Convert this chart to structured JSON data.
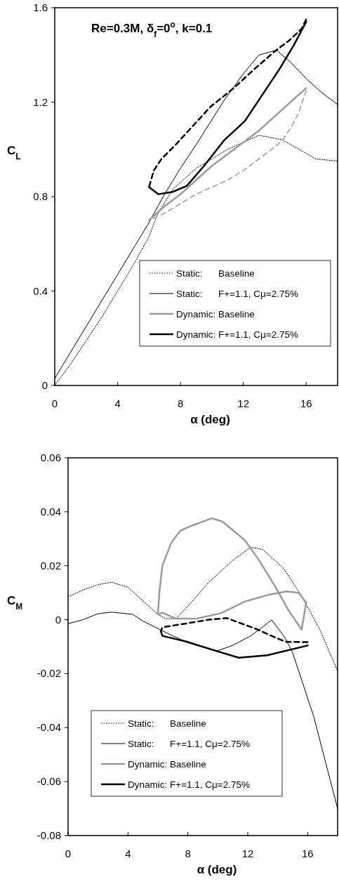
{
  "chart_data": [
    {
      "type": "line",
      "title": "Re=0.3M, δ$_{f}$=0$^{o}$, k=0.1",
      "xlabel": "α (deg)",
      "ylabel": "C$_{L}$",
      "xlim": [
        0,
        18
      ],
      "xticks": [
        0,
        4,
        8,
        12,
        16
      ],
      "ylim": [
        0,
        1.6
      ],
      "yticks": [
        0,
        0.4,
        0.8,
        1.2,
        1.6
      ],
      "legend": "bottom right",
      "series": [
        {
          "name": "Static:      Baseline",
          "color": "#000000",
          "line_style": "dotted",
          "x": [
            0,
            1,
            2,
            3,
            4,
            5,
            6,
            6.5,
            7.5,
            9,
            11,
            13,
            14.5,
            16.6,
            18
          ],
          "values": [
            0,
            0.09,
            0.19,
            0.29,
            0.4,
            0.51,
            0.63,
            0.72,
            0.83,
            0.92,
            1.0,
            1.06,
            1.04,
            0.96,
            0.95
          ]
        },
        {
          "name": "Static:      F+=1.1, Cμ=2.75%",
          "color": "#000000",
          "line_style": "solid",
          "x": [
            0,
            1,
            2,
            3,
            4,
            5,
            6,
            6.9,
            8,
            9,
            10.8,
            12,
            13,
            14.1,
            15,
            16,
            17,
            18
          ],
          "values": [
            0.03,
            0.14,
            0.25,
            0.36,
            0.47,
            0.58,
            0.69,
            0.8,
            0.92,
            1.02,
            1.21,
            1.32,
            1.4,
            1.42,
            1.37,
            1.3,
            1.24,
            1.19
          ]
        },
        {
          "name": "Dynamic: Baseline",
          "color": "#9a9a9a",
          "line_style": "solid",
          "x": [
            6,
            7,
            8,
            9,
            10,
            11,
            12,
            13,
            14,
            15,
            16
          ],
          "values": [
            0.7,
            0.76,
            0.81,
            0.87,
            0.93,
            0.98,
            1.03,
            1.08,
            1.14,
            1.2,
            1.26
          ]
        },
        {
          "color": "#9a9a9a",
          "line_style": "dashed",
          "x": [
            16,
            15.5,
            15,
            14.5,
            14,
            13,
            12,
            11,
            10,
            9,
            8,
            7,
            6
          ],
          "values": [
            1.25,
            1.15,
            1.09,
            1.04,
            1.01,
            0.96,
            0.91,
            0.87,
            0.84,
            0.81,
            0.77,
            0.73,
            0.7
          ]
        },
        {
          "name": "Dynamic: F+=1.1, Cμ=2.75%",
          "color": "#000000",
          "line_style": "solid",
          "x": [
            6.0,
            6.6,
            7.5,
            8.4,
            9.5,
            10.8,
            12.1,
            13.2,
            14.3,
            15.2,
            16.0
          ],
          "values": [
            0.84,
            0.81,
            0.82,
            0.845,
            0.93,
            1.04,
            1.12,
            1.23,
            1.34,
            1.44,
            1.54
          ]
        },
        {
          "color": "#000000",
          "line_style": "dashed",
          "x": [
            16.0,
            15.7,
            14.9,
            14.0,
            12.7,
            11.4,
            9.9,
            8.8,
            7.7,
            6.8,
            6.3,
            6.0
          ],
          "values": [
            1.55,
            1.51,
            1.46,
            1.415,
            1.34,
            1.26,
            1.18,
            1.1,
            1.02,
            0.96,
            0.91,
            0.84
          ]
        }
      ]
    },
    {
      "type": "line",
      "xlabel": "α (deg)",
      "ylabel": "C$_{M}$",
      "xlim": [
        0,
        18
      ],
      "xticks": [
        0,
        4,
        8,
        12,
        16
      ],
      "ylim": [
        -0.08,
        0.06
      ],
      "yticks": [
        -0.08,
        -0.06,
        -0.04,
        -0.02,
        0,
        0.02,
        0.04,
        0.06
      ],
      "legend": "bottom left",
      "series": [
        {
          "name": "Static:      Baseline",
          "color": "#000000",
          "line_style": "dotted",
          "x": [
            0,
            1,
            2,
            2.9,
            4,
            5,
            6,
            6.5,
            7.2,
            8,
            9.4,
            11,
            12.2,
            13,
            14.4,
            15.6,
            16.8,
            18
          ],
          "values": [
            0.0085,
            0.011,
            0.013,
            0.0139,
            0.012,
            0.007,
            0.002,
            0.0004,
            0.0004,
            0.005,
            0.0139,
            0.022,
            0.0269,
            0.026,
            0.019,
            0.0087,
            -0.0035,
            -0.019
          ]
        },
        {
          "name": "Static:      F+=1.1, Cμ=2.75%",
          "color": "#000000",
          "line_style": "solid",
          "x": [
            0,
            1,
            2,
            2.9,
            4.3,
            5,
            6,
            7,
            8,
            9.9,
            11,
            12.2,
            13.6,
            14.5,
            15,
            16.4,
            18
          ],
          "values": [
            -0.0015,
            0,
            0.0022,
            0.0028,
            0.002,
            -0.0005,
            -0.0033,
            -0.006,
            -0.0085,
            -0.0117,
            -0.0095,
            -0.006,
            -0.0001,
            -0.0068,
            -0.0123,
            -0.0358,
            -0.07
          ]
        },
        {
          "name": "Dynamic: Baseline",
          "color": "#9a9a9a",
          "line_style": "solid",
          "x": [
            6.0,
            6.1,
            6.3,
            6.9,
            7.5,
            8.2,
            9.6,
            10.3,
            11.8,
            12.7,
            13.8,
            14.7,
            15.6,
            15.9
          ],
          "values": [
            0.002,
            0.0104,
            0.02,
            0.0286,
            0.033,
            0.0347,
            0.0376,
            0.0364,
            0.0295,
            0.0225,
            0.0126,
            0.0037,
            -0.0037,
            0.0063
          ]
        },
        {
          "color": "#9a9a9a",
          "line_style": "solid",
          "x": [
            15.9,
            15.4,
            14.6,
            13.3,
            11.8,
            10.2,
            8.6,
            7.2,
            6.3,
            6.0
          ],
          "values": [
            0.0063,
            0.01,
            0.0105,
            0.0091,
            0.0067,
            0.0024,
            0.0004,
            0.0004,
            0.0026,
            0.002
          ]
        },
        {
          "name": "Dynamic: F+=1.1, Cμ=2.75%",
          "color": "#000000",
          "line_style": "solid",
          "x": [
            6.2,
            6.3,
            7.9,
            9.9,
            11.4,
            13.3,
            15.9,
            16.0
          ],
          "values": [
            -0.0043,
            -0.006,
            -0.0081,
            -0.0116,
            -0.0141,
            -0.0132,
            -0.0097,
            -0.0095
          ]
        },
        {
          "color": "#000000",
          "line_style": "dashed",
          "x": [
            16.0,
            14.5,
            12.5,
            10.6,
            9.4,
            8.0,
            6.3,
            6.2
          ],
          "values": [
            -0.0083,
            -0.0082,
            -0.0033,
            0.0006,
            0.0,
            -0.0013,
            -0.0028,
            -0.0043
          ]
        }
      ]
    }
  ]
}
